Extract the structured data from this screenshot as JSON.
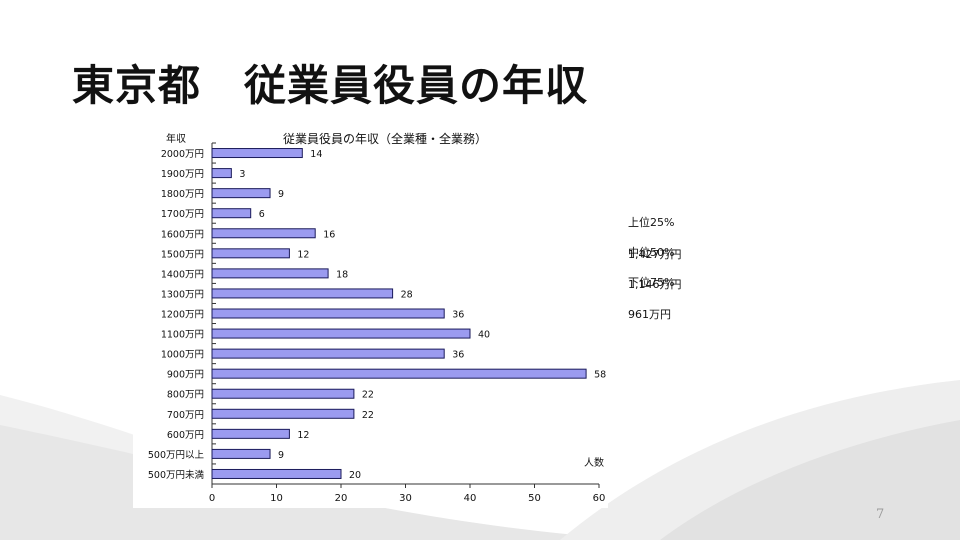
{
  "slide": {
    "title": "東京都　従業員役員の年収",
    "page_number": "7"
  },
  "stats": [
    {
      "label": "上位25%",
      "value": "1,427万円"
    },
    {
      "label": "中位50%",
      "value": "1,146万円"
    },
    {
      "label": "下位75%",
      "value": "961万円"
    }
  ],
  "colors": {
    "bar_fill": "#9B9BF0",
    "bar_stroke": "#1A1A5A",
    "axis": "#333333"
  },
  "chart_data": {
    "type": "bar",
    "orientation": "horizontal",
    "title": "従業員役員の年収（全業種・全業務）",
    "ylabel": "年収",
    "xlabel": "人数",
    "categories": [
      "2000万円",
      "1900万円",
      "1800万円",
      "1700万円",
      "1600万円",
      "1500万円",
      "1400万円",
      "1300万円",
      "1200万円",
      "1100万円",
      "1000万円",
      "900万円",
      "800万円",
      "700万円",
      "600万円",
      "500万円以上",
      "500万円未満"
    ],
    "values": [
      14,
      3,
      9,
      6,
      16,
      12,
      18,
      28,
      36,
      40,
      36,
      58,
      22,
      22,
      12,
      9,
      20
    ],
    "xlim": [
      0,
      60
    ],
    "xticks": [
      0,
      10,
      20,
      30,
      40,
      50,
      60
    ],
    "grid": false,
    "data_labels": true
  }
}
